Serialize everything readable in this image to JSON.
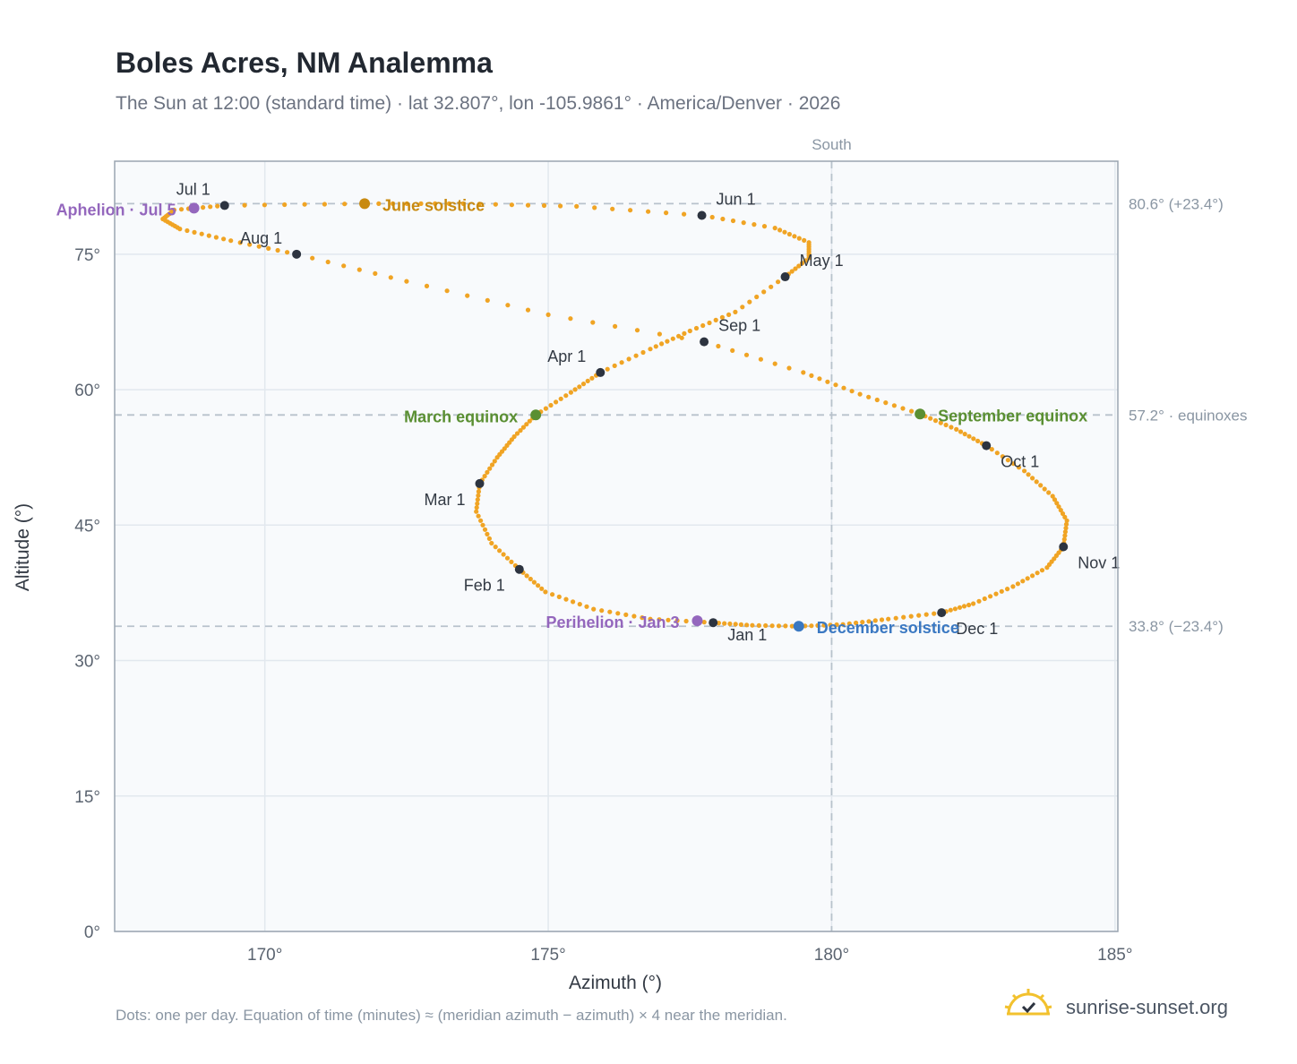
{
  "title": "Boles Acres, NM Analemma",
  "subtitle": "The Sun at 12:00 (standard time) · lat 32.807°, lon -105.9861° · America/Denver · 2026",
  "footnote": "Dots: one per day. Equation of time (minutes) ≈ (meridian azimuth − azimuth) × 4 near the meridian.",
  "brand": {
    "name": "sunrise-sunset.org",
    "logo_icon": "sun-logo-icon"
  },
  "colors": {
    "analemma": "#f0a424",
    "month_marker": "#2d3440",
    "equinox": "#5a8f32",
    "june_solstice": "#c88a10",
    "december_solstice": "#3a78c2",
    "apsis": "#9467bd",
    "reference_line": "#b8c2cc",
    "plot_bg": "#f8fafc",
    "frame": "#9aa5b1"
  },
  "chart_data": {
    "type": "scatter",
    "xlabel": "Azimuth (°)",
    "ylabel": "Altitude (°)",
    "xlim": [
      167.35,
      185.05
    ],
    "ylim": [
      0,
      85.3
    ],
    "xticks": [
      170,
      175,
      180,
      185
    ],
    "xtick_labels": [
      "170°",
      "175°",
      "180°",
      "185°"
    ],
    "yticks": [
      0,
      15,
      30,
      45,
      60,
      75
    ],
    "ytick_labels": [
      "0°",
      "15°",
      "30°",
      "45°",
      "60°",
      "75°"
    ],
    "grid": true,
    "meridian": {
      "azimuth": 180,
      "label": "South"
    },
    "reference_lines": [
      {
        "altitude": 80.6,
        "label": "80.6° (+23.4°)"
      },
      {
        "altitude": 57.2,
        "label": "57.2° · equinoxes"
      },
      {
        "altitude": 33.8,
        "label": "33.8° (−23.4°)"
      }
    ],
    "month_markers": [
      {
        "label": "Jan 1",
        "az": 177.91,
        "alt": 34.2
      },
      {
        "label": "Feb 1",
        "az": 174.49,
        "alt": 40.1
      },
      {
        "label": "Mar 1",
        "az": 173.79,
        "alt": 49.6
      },
      {
        "label": "Apr 1",
        "az": 175.92,
        "alt": 61.9
      },
      {
        "label": "May 1",
        "az": 179.18,
        "alt": 72.5
      },
      {
        "label": "Jun 1",
        "az": 177.71,
        "alt": 79.3
      },
      {
        "label": "Jul 1",
        "az": 169.29,
        "alt": 80.4
      },
      {
        "label": "Aug 1",
        "az": 170.56,
        "alt": 75.0
      },
      {
        "label": "Sep 1",
        "az": 177.75,
        "alt": 65.3
      },
      {
        "label": "Oct 1",
        "az": 182.73,
        "alt": 53.8
      },
      {
        "label": "Nov 1",
        "az": 184.09,
        "alt": 42.6
      },
      {
        "label": "Dec 1",
        "az": 181.94,
        "alt": 35.3
      }
    ],
    "events": [
      {
        "label": "March equinox",
        "az": 174.78,
        "alt": 57.2,
        "kind": "equinox"
      },
      {
        "label": "June solstice",
        "az": 171.76,
        "alt": 80.6,
        "kind": "june_solstice"
      },
      {
        "label": "September equinox",
        "az": 181.56,
        "alt": 57.3,
        "kind": "equinox"
      },
      {
        "label": "December solstice",
        "az": 179.42,
        "alt": 33.8,
        "kind": "december_solstice"
      },
      {
        "label": "Perihelion · Jan 3",
        "az": 177.63,
        "alt": 34.4,
        "kind": "apsis"
      },
      {
        "label": "Aphelion · Jul 5",
        "az": 168.75,
        "alt": 80.1,
        "kind": "apsis"
      }
    ],
    "daily_path": [
      [
        177.91,
        34.2
      ],
      [
        176.8,
        34.6
      ],
      [
        175.8,
        35.7
      ],
      [
        174.95,
        37.6
      ],
      [
        174.49,
        40.1
      ],
      [
        174.0,
        43.0
      ],
      [
        173.73,
        46.5
      ],
      [
        173.79,
        49.6
      ],
      [
        174.1,
        52.5
      ],
      [
        174.4,
        54.8
      ],
      [
        174.78,
        57.2
      ],
      [
        175.4,
        59.7
      ],
      [
        175.92,
        61.9
      ],
      [
        176.8,
        64.5
      ],
      [
        177.5,
        66.5
      ],
      [
        178.3,
        68.6
      ],
      [
        179.18,
        72.5
      ],
      [
        179.6,
        74.6
      ],
      [
        179.6,
        76.3
      ],
      [
        179.0,
        77.9
      ],
      [
        177.71,
        79.3
      ],
      [
        175.5,
        80.3
      ],
      [
        173.5,
        80.6
      ],
      [
        171.76,
        80.6
      ],
      [
        169.29,
        80.4
      ],
      [
        168.4,
        79.9
      ],
      [
        168.2,
        78.9
      ],
      [
        168.5,
        77.8
      ],
      [
        169.4,
        76.5
      ],
      [
        170.56,
        75.0
      ],
      [
        172.5,
        72.0
      ],
      [
        175.0,
        68.3
      ],
      [
        177.75,
        65.3
      ],
      [
        179.5,
        61.9
      ],
      [
        180.5,
        59.5
      ],
      [
        181.56,
        57.3
      ],
      [
        182.2,
        55.6
      ],
      [
        182.73,
        53.8
      ],
      [
        183.4,
        51.0
      ],
      [
        183.9,
        48.2
      ],
      [
        184.15,
        45.5
      ],
      [
        184.09,
        42.6
      ],
      [
        183.8,
        40.3
      ],
      [
        183.2,
        38.2
      ],
      [
        182.5,
        36.3
      ],
      [
        181.94,
        35.3
      ],
      [
        181.0,
        34.6
      ],
      [
        180.2,
        34.0
      ],
      [
        179.42,
        33.8
      ],
      [
        178.6,
        33.9
      ],
      [
        177.91,
        34.2
      ]
    ]
  }
}
